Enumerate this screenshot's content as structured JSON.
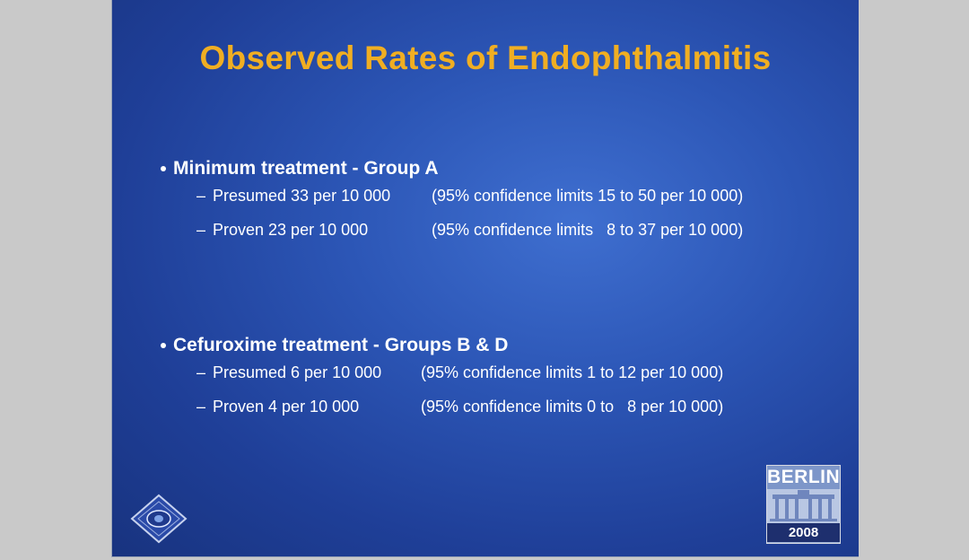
{
  "slide": {
    "title": "Observed Rates of Endophthalmitis",
    "sections": [
      {
        "heading": "Minimum treatment - Group A",
        "items": [
          {
            "dash": "–",
            "main": "Presumed 33 per 10 000",
            "ci": "(95% confidence limits 15 to 50 per 10 000)"
          },
          {
            "dash": "–",
            "main": "Proven 23 per 10 000",
            "ci": "(95% confidence limits   8 to 37 per 10 000)"
          }
        ]
      },
      {
        "heading": "Cefuroxime treatment - Groups B & D",
        "items": [
          {
            "dash": "–",
            "main": "Presumed 6 per 10 000",
            "ci": "(95% confidence limits 1 to 12 per 10 000)"
          },
          {
            "dash": "–",
            "main": "Proven 4 per 10 000",
            "ci": "(95% confidence limits 0 to   8 per 10 000)"
          }
        ]
      }
    ],
    "badge": {
      "city": "BERLIN",
      "year": "2008"
    }
  },
  "colors": {
    "title": "#f0ae22",
    "text": "#ffffff",
    "background": "#2c56b6"
  }
}
